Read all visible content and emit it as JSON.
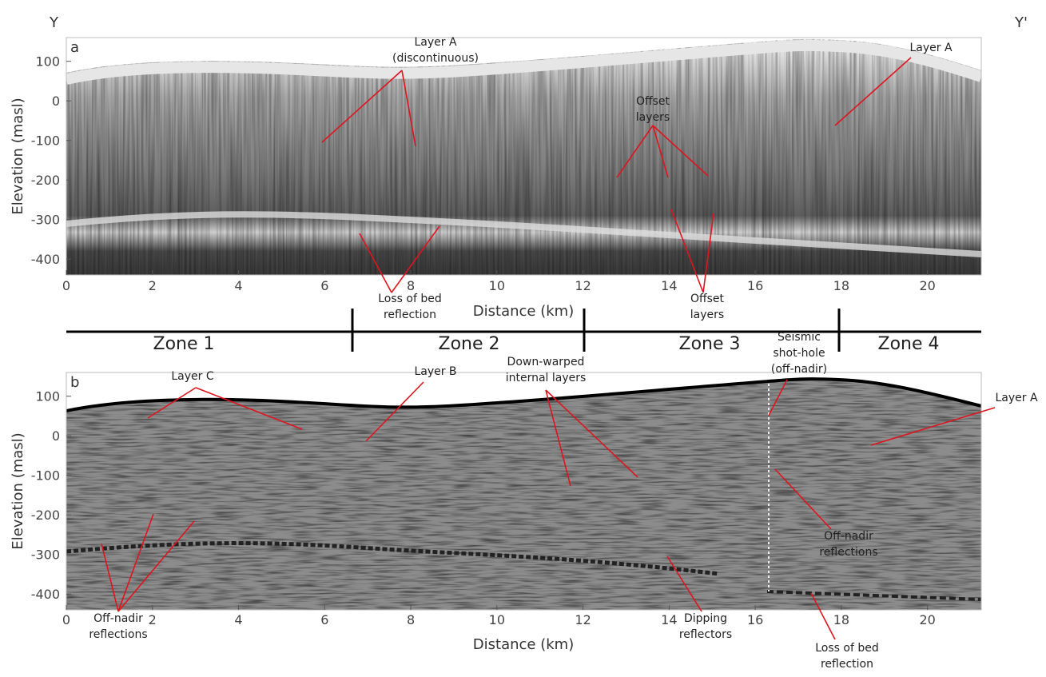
{
  "corner_labels": {
    "left": "Y",
    "right": "Y'"
  },
  "panels": [
    {
      "letter": "a",
      "ylabel": "Elevation (masl)",
      "xlabel": "Distance (km)",
      "xlim": [
        0,
        21.25
      ],
      "ylim": [
        -440,
        160
      ],
      "xticks": [
        0,
        2,
        4,
        6,
        8,
        10,
        12,
        14,
        16,
        18,
        20
      ],
      "yticks": [
        100,
        0,
        -100,
        -200,
        -300,
        -400
      ],
      "annotations": [
        {
          "lines": [
            "Layer A",
            "(discontinuous)"
          ]
        },
        {
          "lines": [
            "Offset",
            "layers"
          ]
        },
        {
          "lines": [
            "Layer A"
          ]
        },
        {
          "lines": [
            "Loss of bed",
            "reflection"
          ]
        },
        {
          "lines": [
            "Offset",
            "layers"
          ]
        }
      ]
    },
    {
      "letter": "b",
      "ylabel": "Elevation (masl)",
      "xlabel": "Distance (km)",
      "xlim": [
        0,
        21.25
      ],
      "ylim": [
        -440,
        160
      ],
      "xticks": [
        0,
        2,
        4,
        6,
        8,
        10,
        12,
        14,
        16,
        18,
        20
      ],
      "yticks": [
        100,
        0,
        -100,
        -200,
        -300,
        -400
      ],
      "annotations": [
        {
          "lines": [
            "Layer C"
          ]
        },
        {
          "lines": [
            "Layer B"
          ]
        },
        {
          "lines": [
            "Down-warped",
            "internal layers"
          ]
        },
        {
          "lines": [
            "Seismic",
            "shot-hole",
            "(off-nadir)"
          ]
        },
        {
          "lines": [
            "Layer A"
          ]
        },
        {
          "lines": [
            "Off-nadir",
            "reflections"
          ]
        },
        {
          "lines": [
            "Off-nadir",
            "reflections"
          ]
        },
        {
          "lines": [
            "Dipping",
            "reflectors"
          ]
        },
        {
          "lines": [
            "Loss of bed",
            "reflection"
          ]
        }
      ]
    }
  ],
  "zones": [
    "Zone 1",
    "Zone 2",
    "Zone 3",
    "Zone 4"
  ]
}
